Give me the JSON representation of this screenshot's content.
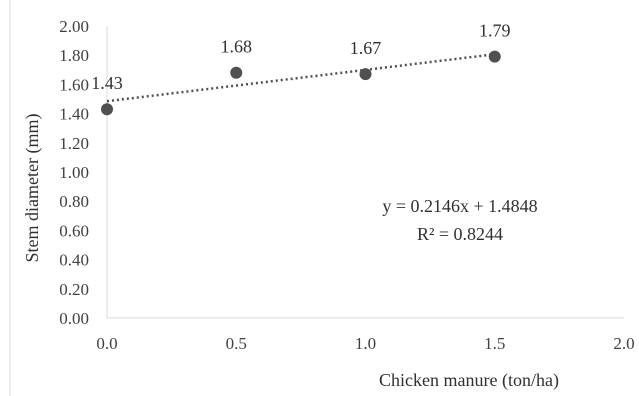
{
  "chart_data": {
    "type": "scatter",
    "title": "",
    "xlabel": "Chicken manure (ton/ha)",
    "ylabel": "Stem diameter  (mm)",
    "xlim": [
      0,
      2
    ],
    "ylim": [
      0,
      2
    ],
    "x_ticks": [
      "0.0",
      "0.5",
      "1.0",
      "1.5",
      "2.0"
    ],
    "y_ticks": [
      "0.00",
      "0.20",
      "0.40",
      "0.60",
      "0.80",
      "1.00",
      "1.20",
      "1.40",
      "1.60",
      "1.80",
      "2.00"
    ],
    "grid": false,
    "series": [
      {
        "x": [
          0,
          0.5,
          1.0,
          1.5
        ],
        "y": [
          1.43,
          1.68,
          1.67,
          1.79
        ],
        "labels": [
          "1.43",
          "1.68",
          "1.67",
          "1.79"
        ],
        "color": "#505050"
      }
    ],
    "trendline": {
      "type": "linear",
      "slope": 0.2146,
      "intercept": 1.4848,
      "style": "dotted",
      "color": "#505050",
      "equation": "y = 0.2146x + 1.4848",
      "r_squared": "R² = 0.8244"
    }
  }
}
